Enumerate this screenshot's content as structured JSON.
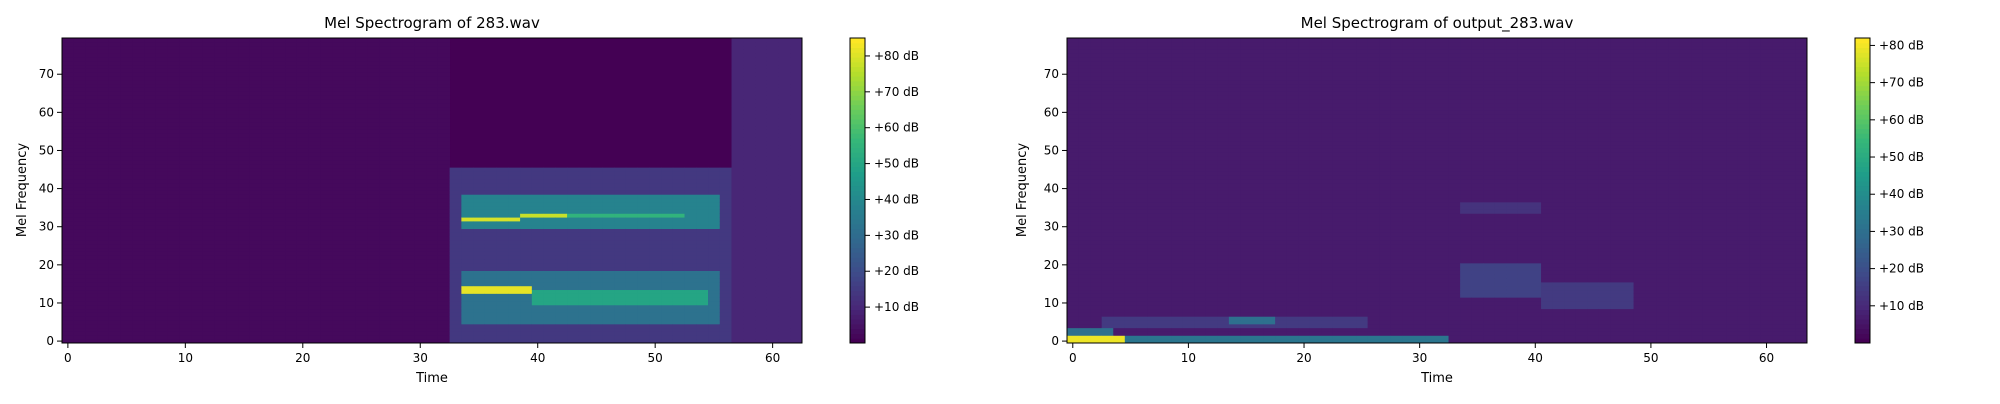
{
  "colors": {
    "background": "#ffffff",
    "viridis_low": "#440154",
    "viridis_high": "#fde725"
  },
  "chart_data": [
    {
      "type": "heatmap",
      "title": "Mel Spectrogram of 283.wav",
      "xlabel": "Time",
      "ylabel": "Mel Frequency",
      "xlim": [
        -0.5,
        62.5
      ],
      "ylim": [
        -0.5,
        79.5
      ],
      "x_ticks": [
        0,
        10,
        20,
        30,
        40,
        50,
        60
      ],
      "y_ticks": [
        0,
        10,
        20,
        30,
        40,
        50,
        60,
        70
      ],
      "colorbar": {
        "label_format": "%+2.0f dB",
        "range_db": [
          0,
          85
        ],
        "ticks": [
          10,
          20,
          30,
          40,
          50,
          60,
          70,
          80
        ],
        "tick_labels": [
          "+10 dB",
          "+20 dB",
          "+30 dB",
          "+40 dB",
          "+50 dB",
          "+60 dB",
          "+70 dB",
          "+80 dB"
        ]
      },
      "grid": false,
      "shape": {
        "time_frames": 63,
        "mel_bins": 80
      },
      "features": [
        {
          "t": [
            0,
            32
          ],
          "f": [
            0,
            79
          ],
          "db": 2
        },
        {
          "t": [
            33,
            56
          ],
          "f": [
            0,
            45
          ],
          "db": 14
        },
        {
          "t": [
            34,
            55
          ],
          "f": [
            30,
            38
          ],
          "db": 38
        },
        {
          "t": [
            34,
            38
          ],
          "f": [
            32,
            32
          ],
          "db": 80
        },
        {
          "t": [
            39,
            42
          ],
          "f": [
            33,
            33
          ],
          "db": 78
        },
        {
          "t": [
            43,
            52
          ],
          "f": [
            33,
            33
          ],
          "db": 55
        },
        {
          "t": [
            34,
            55
          ],
          "f": [
            5,
            18
          ],
          "db": 32
        },
        {
          "t": [
            34,
            39
          ],
          "f": [
            13,
            14
          ],
          "db": 82
        },
        {
          "t": [
            40,
            54
          ],
          "f": [
            10,
            13
          ],
          "db": 50
        },
        {
          "t": [
            58,
            61
          ],
          "f": [
            33,
            44
          ],
          "db": 24
        },
        {
          "t": [
            57,
            62
          ],
          "f": [
            0,
            79
          ],
          "db": 9
        }
      ]
    },
    {
      "type": "heatmap",
      "title": "Mel Spectrogram of output_283.wav",
      "xlabel": "Time",
      "ylabel": "Mel Frequency",
      "xlim": [
        -0.5,
        63.5
      ],
      "ylim": [
        -0.5,
        79.5
      ],
      "x_ticks": [
        0,
        10,
        20,
        30,
        40,
        50,
        60
      ],
      "y_ticks": [
        0,
        10,
        20,
        30,
        40,
        50,
        60,
        70
      ],
      "colorbar": {
        "label_format": "%+2.0f dB",
        "range_db": [
          0,
          82
        ],
        "ticks": [
          10,
          20,
          30,
          40,
          50,
          60,
          70,
          80
        ],
        "tick_labels": [
          "+10 dB",
          "+20 dB",
          "+30 dB",
          "+40 dB",
          "+50 dB",
          "+60 dB",
          "+70 dB",
          "+80 dB"
        ]
      },
      "grid": false,
      "shape": {
        "time_frames": 64,
        "mel_bins": 80
      },
      "features": [
        {
          "t": [
            0,
            63
          ],
          "f": [
            0,
            79
          ],
          "db": 6
        },
        {
          "t": [
            0,
            4
          ],
          "f": [
            0,
            1
          ],
          "db": 80
        },
        {
          "t": [
            5,
            32
          ],
          "f": [
            0,
            1
          ],
          "db": 32
        },
        {
          "t": [
            0,
            3
          ],
          "f": [
            2,
            3
          ],
          "db": 30
        },
        {
          "t": [
            3,
            25
          ],
          "f": [
            4,
            6
          ],
          "db": 14
        },
        {
          "t": [
            14,
            17
          ],
          "f": [
            5,
            6
          ],
          "db": 30
        },
        {
          "t": [
            34,
            40
          ],
          "f": [
            12,
            20
          ],
          "db": 16
        },
        {
          "t": [
            41,
            48
          ],
          "f": [
            9,
            15
          ],
          "db": 14
        },
        {
          "t": [
            34,
            40
          ],
          "f": [
            34,
            36
          ],
          "db": 12
        }
      ]
    }
  ]
}
